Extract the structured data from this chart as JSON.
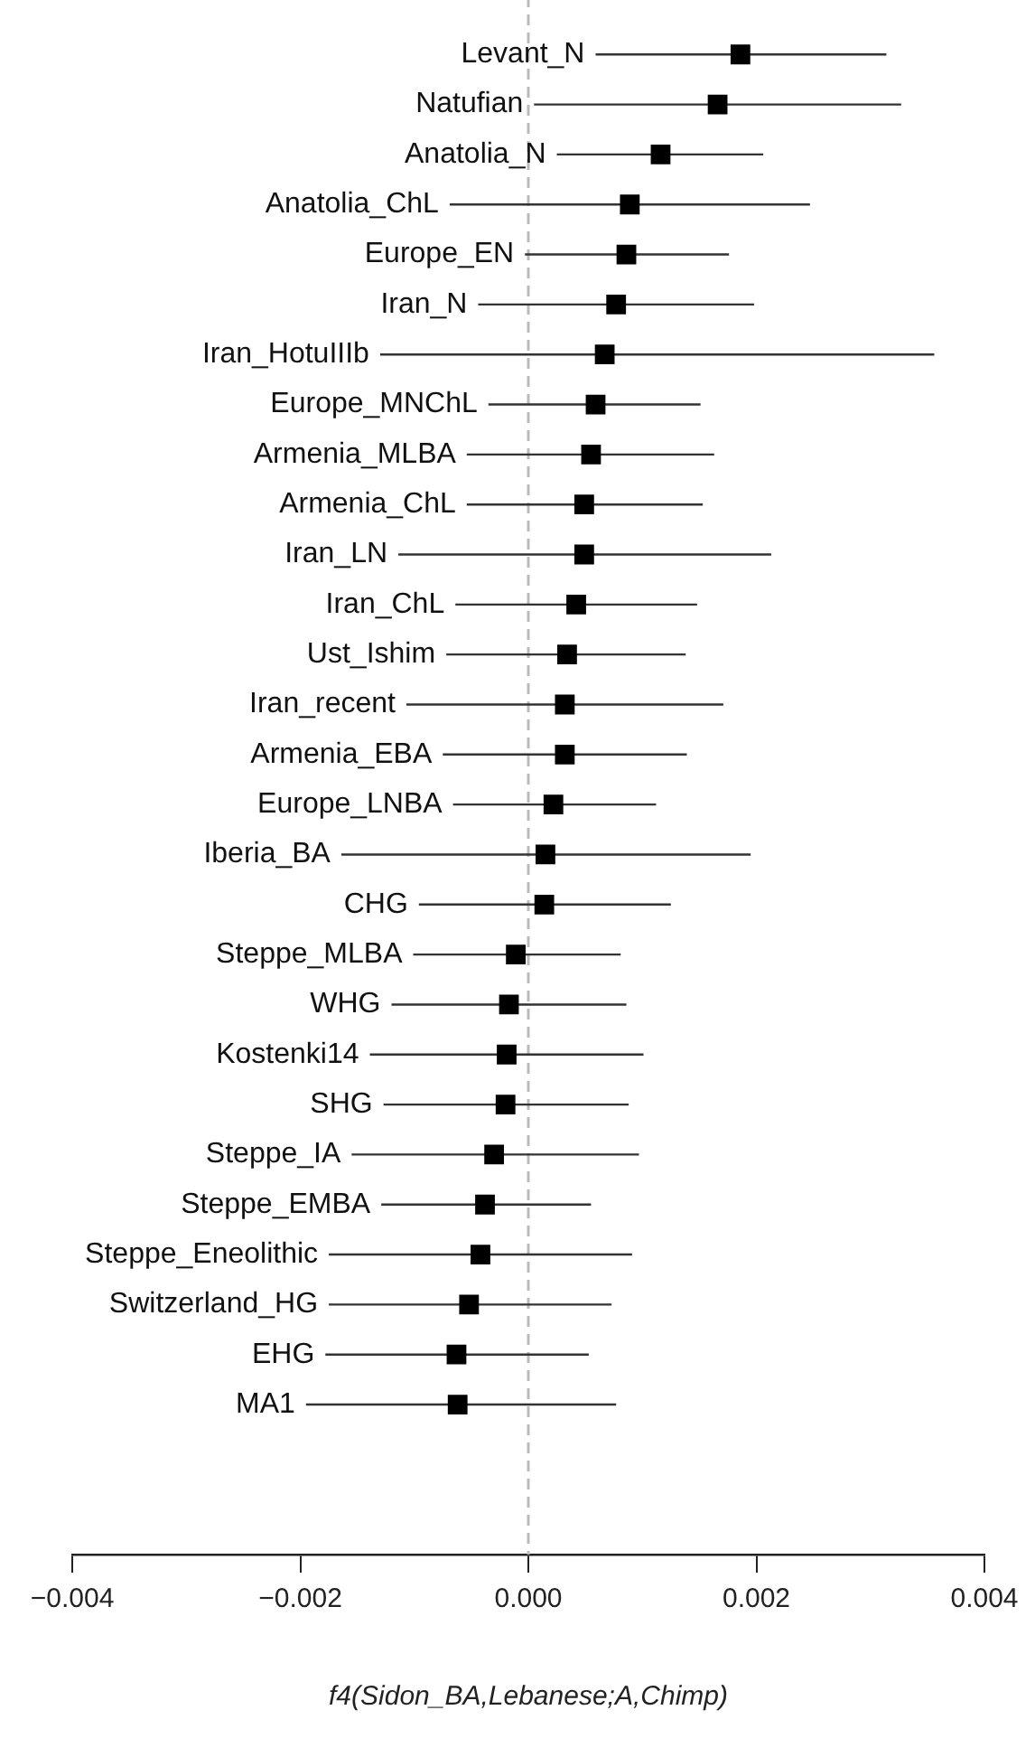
{
  "chart_data": {
    "type": "scatter",
    "orientation": "horizontal",
    "xlabel": "f4(Sidon_BA,Lebanese;A,Chimp)",
    "categories": [
      "Levant_N",
      "Natufian",
      "Anatolia_N",
      "Anatolia_ChL",
      "Europe_EN",
      "Iran_N",
      "Iran_HotuIIIb",
      "Europe_MNChL",
      "Armenia_MLBA",
      "Armenia_ChL",
      "Iran_LN",
      "Iran_ChL",
      "Ust_Ishim",
      "Iran_recent",
      "Armenia_EBA",
      "Europe_LNBA",
      "Iberia_BA",
      "CHG",
      "Steppe_MLBA",
      "WHG",
      "Kostenki14",
      "SHG",
      "Steppe_IA",
      "Steppe_EMBA",
      "Steppe_Eneolithic",
      "Switzerland_HG",
      "EHG",
      "MA1"
    ],
    "values": [
      0.00186,
      0.00166,
      0.00116,
      0.00089,
      0.00086,
      0.00077,
      0.00067,
      0.00059,
      0.00055,
      0.00049,
      0.00049,
      0.00042,
      0.00034,
      0.00032,
      0.00032,
      0.00022,
      0.00015,
      0.00014,
      -0.00011,
      -0.00017,
      -0.00019,
      -0.0002,
      -0.0003,
      -0.00038,
      -0.00042,
      -0.00052,
      -0.00063,
      -0.00062
    ],
    "errors": [
      [
        0.00059,
        0.00314
      ],
      [
        5e-05,
        0.00327
      ],
      [
        0.00025,
        0.00206
      ],
      [
        -0.00069,
        0.00247
      ],
      [
        -3e-05,
        0.00176
      ],
      [
        -0.00044,
        0.00198
      ],
      [
        -0.0013,
        0.00356
      ],
      [
        -0.00035,
        0.00151
      ],
      [
        -0.00054,
        0.00163
      ],
      [
        -0.00054,
        0.00153
      ],
      [
        -0.00114,
        0.00213
      ],
      [
        -0.00064,
        0.00148
      ],
      [
        -0.00072,
        0.00138
      ],
      [
        -0.00107,
        0.00171
      ],
      [
        -0.00075,
        0.00139
      ],
      [
        -0.00066,
        0.00112
      ],
      [
        -0.00164,
        0.00195
      ],
      [
        -0.00096,
        0.00125
      ],
      [
        -0.00101,
        0.00081
      ],
      [
        -0.0012,
        0.00086
      ],
      [
        -0.00139,
        0.00101
      ],
      [
        -0.00127,
        0.00088
      ],
      [
        -0.00155,
        0.00097
      ],
      [
        -0.00129,
        0.00055
      ],
      [
        -0.00175,
        0.00091
      ],
      [
        -0.00175,
        0.00073
      ],
      [
        -0.00178,
        0.00053
      ],
      [
        -0.00195,
        0.00077
      ]
    ],
    "color": "#000000",
    "marker": "square",
    "grid": false,
    "legend": false,
    "xlim": [
      -0.004,
      0.004
    ],
    "xticks": [
      {
        "value": -0.004,
        "label": "−0.004"
      },
      {
        "value": -0.002,
        "label": "−0.002"
      },
      {
        "value": 0,
        "label": "0.000"
      },
      {
        "value": 0.002,
        "label": "0.002"
      },
      {
        "value": 0.004,
        "label": "0.004"
      }
    ],
    "ref_lines": [
      {
        "axis": "x",
        "value": 0,
        "color": "#bbbbbb",
        "line_style": "dashed"
      }
    ]
  }
}
